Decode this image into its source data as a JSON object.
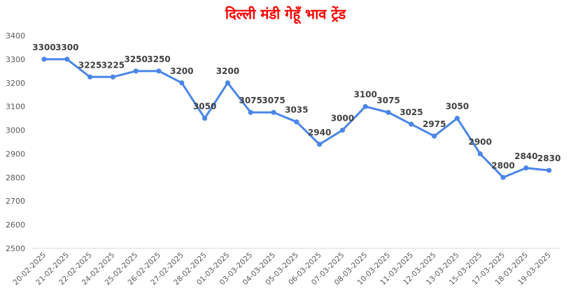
{
  "chart_data": {
    "type": "line",
    "title": "दिल्ली मंडी गेहूँ भाव ट्रेंड",
    "xlabel": "",
    "ylabel": "",
    "ylim": [
      2500,
      3400
    ],
    "yticks": [
      2500,
      2600,
      2700,
      2800,
      2900,
      3000,
      3100,
      3200,
      3300,
      3400
    ],
    "grid": false,
    "legend": "none",
    "categories": [
      "20-02-2025",
      "21-02-2025",
      "22-02-2025",
      "24-02-2025",
      "25-02-2025",
      "26-02-2025",
      "27-02-2025",
      "28-02-2025",
      "01-03-2025",
      "03-03-2025",
      "04-03-2025",
      "05-03-2025",
      "06-03-2025",
      "07-03-2025",
      "08-03-2025",
      "10-03-2025",
      "11-03-2025",
      "12-03-2025",
      "13-03-2025",
      "15-03-2025",
      "17-03-2025",
      "18-03-2025",
      "19-03-2025"
    ],
    "series": [
      {
        "values": [
          3300,
          3300,
          3225,
          3225,
          3250,
          3250,
          3200,
          3050,
          3200,
          3075,
          3075,
          3035,
          2940,
          3000,
          3100,
          3075,
          3025,
          2975,
          3050,
          2900,
          2800,
          2840,
          2830
        ]
      }
    ],
    "colors": {
      "line": "#4A86E8",
      "title": "#FF0000",
      "label": "#404040",
      "axis_text": "#595959",
      "axis_line": "#D9D9D9"
    }
  }
}
